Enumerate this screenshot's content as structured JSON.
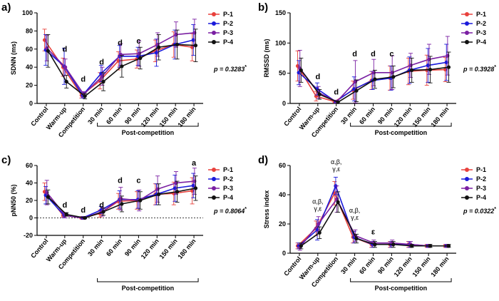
{
  "x_categories": [
    "Control",
    "Warm-up",
    "Competition",
    "30 min",
    "60 min",
    "90 min",
    "120 min",
    "150 min",
    "180 min"
  ],
  "post_label": "Post-competition",
  "series_names": [
    "P-1",
    "P-2",
    "P-3",
    "P-4"
  ],
  "series_colors": [
    "#e8413c",
    "#1a1adb",
    "#7a1fa2",
    "#111111"
  ],
  "chart_data": [
    {
      "id": "a",
      "letter": "a)",
      "type": "line",
      "ylabel": "SDNN (ms)",
      "ylim": [
        0,
        100
      ],
      "yticks": [
        0,
        20,
        40,
        60,
        80,
        100
      ],
      "p_label": "p = 0.3283",
      "p_star": "*",
      "annotations": [
        {
          "cat": 1,
          "text": "d",
          "y": 57
        },
        {
          "cat": 2,
          "text": "d",
          "y": 24
        },
        {
          "cat": 3,
          "text": "d",
          "y": 43
        },
        {
          "cat": 4,
          "text": "d",
          "y": 64
        },
        {
          "cat": 5,
          "text": "c",
          "y": 66
        }
      ],
      "series": [
        {
          "name": "P-1",
          "values": [
            70,
            40,
            9,
            25,
            47,
            49,
            58,
            65,
            62
          ],
          "errors": [
            12,
            10,
            3,
            9,
            10,
            10,
            12,
            14,
            15
          ]
        },
        {
          "name": "P-2",
          "values": [
            59,
            41,
            9,
            33,
            52,
            52,
            56,
            65,
            70
          ],
          "errors": [
            17,
            20,
            3,
            9,
            12,
            10,
            15,
            16,
            17
          ]
        },
        {
          "name": "P-3",
          "values": [
            61,
            40,
            10,
            30,
            54,
            55,
            65,
            76,
            78
          ],
          "errors": [
            14,
            9,
            3,
            10,
            12,
            14,
            13,
            14,
            15
          ]
        },
        {
          "name": "P-4",
          "values": [
            58,
            24,
            8,
            24,
            41,
            50,
            62,
            65,
            64
          ],
          "errors": [
            18,
            7,
            3,
            10,
            12,
            12,
            14,
            16,
            18
          ]
        }
      ]
    },
    {
      "id": "b",
      "letter": "b)",
      "type": "line",
      "ylabel": "RMSSD (ms)",
      "ylim": [
        0,
        150
      ],
      "yticks": [
        0,
        50,
        100,
        150
      ],
      "p_label": "p = 0.3928",
      "p_star": "*",
      "annotations": [
        {
          "cat": 1,
          "text": "d",
          "y": 40
        },
        {
          "cat": 2,
          "text": "d",
          "y": 15
        },
        {
          "cat": 3,
          "text": "d",
          "y": 78
        },
        {
          "cat": 4,
          "text": "d",
          "y": 78
        },
        {
          "cat": 5,
          "text": "c",
          "y": 78
        }
      ],
      "series": [
        {
          "name": "P-1",
          "values": [
            62,
            12,
            3,
            22,
            38,
            42,
            53,
            55,
            56
          ],
          "errors": [
            25,
            8,
            2,
            15,
            15,
            20,
            22,
            25,
            20
          ]
        },
        {
          "name": "P-2",
          "values": [
            51,
            24,
            3,
            24,
            38,
            42,
            55,
            63,
            68
          ],
          "errors": [
            20,
            10,
            2,
            20,
            15,
            20,
            22,
            28,
            30
          ]
        },
        {
          "name": "P-3",
          "values": [
            58,
            18,
            3,
            36,
            51,
            51,
            63,
            73,
            79
          ],
          "errors": [
            30,
            10,
            2,
            35,
            22,
            28,
            20,
            25,
            32
          ]
        },
        {
          "name": "P-4",
          "values": [
            55,
            15,
            2,
            21,
            40,
            44,
            55,
            56,
            60
          ],
          "errors": [
            20,
            8,
            2,
            18,
            15,
            18,
            20,
            22,
            25
          ]
        }
      ]
    },
    {
      "id": "c",
      "letter": "c)",
      "type": "line",
      "ylabel": "pNN50 (%)",
      "ylim": [
        -20,
        60
      ],
      "yticks": [
        -20,
        0,
        20,
        40,
        60
      ],
      "p_label": "p = 0.8064",
      "p_star": "*",
      "annotations": [
        {
          "cat": 1,
          "text": "d",
          "y": 12
        },
        {
          "cat": 2,
          "text": "d",
          "y": 6
        },
        {
          "cat": 3,
          "text": "d",
          "y": 12
        },
        {
          "cat": 4,
          "text": "d",
          "y": 40
        },
        {
          "cat": 5,
          "text": "c",
          "y": 40
        },
        {
          "cat": 8,
          "text": "a",
          "y": 60
        }
      ],
      "series": [
        {
          "name": "P-1",
          "values": [
            30,
            3,
            0,
            5,
            19,
            20,
            27,
            28,
            31
          ],
          "errors": [
            10,
            2,
            1,
            4,
            9,
            10,
            12,
            13,
            15
          ]
        },
        {
          "name": "P-2",
          "values": [
            26,
            3,
            0,
            9,
            21,
            21,
            27,
            34,
            37
          ],
          "errors": [
            10,
            3,
            1,
            4,
            10,
            10,
            12,
            15,
            14
          ]
        },
        {
          "name": "P-3",
          "values": [
            29,
            3,
            0,
            7,
            22,
            20,
            33,
            40,
            42
          ],
          "errors": [
            14,
            3,
            1,
            5,
            13,
            12,
            15,
            13,
            15
          ]
        },
        {
          "name": "P-4",
          "values": [
            24,
            4,
            0,
            7,
            16,
            20,
            27,
            30,
            34
          ],
          "errors": [
            8,
            2,
            1,
            4,
            9,
            10,
            12,
            12,
            14
          ]
        }
      ]
    },
    {
      "id": "d",
      "letter": "d)",
      "type": "line",
      "ylabel": "Stress index",
      "ylim": [
        0,
        60
      ],
      "yticks": [
        0,
        20,
        40,
        60
      ],
      "p_label": "p = 0.0322",
      "p_star": "*",
      "annotations": [
        {
          "cat": 1,
          "text": "α,β,",
          "text2": "γ,ε",
          "y": 29
        },
        {
          "cat": 2,
          "text": "α,β,",
          "text2": "γ,ε",
          "y": 56
        },
        {
          "cat": 3,
          "text": "α,β,",
          "text2": "γ,ε",
          "y": 23
        },
        {
          "cat": 4,
          "text": "ε",
          "y": 13
        }
      ],
      "series": [
        {
          "name": "P-1",
          "values": [
            5,
            17,
            41,
            11,
            6,
            6,
            6,
            5,
            5
          ],
          "errors": [
            2,
            5,
            8,
            4,
            2,
            2,
            2,
            1,
            1
          ]
        },
        {
          "name": "P-2",
          "values": [
            5,
            16,
            46,
            11,
            6,
            6,
            6,
            5,
            5
          ],
          "errors": [
            2,
            7,
            6,
            4,
            2,
            2,
            2,
            1,
            1
          ]
        },
        {
          "name": "P-3",
          "values": [
            4,
            20,
            37,
            12,
            7,
            7,
            6,
            5,
            5
          ],
          "errors": [
            2,
            5,
            9,
            4,
            2,
            2,
            2,
            1,
            1
          ]
        },
        {
          "name": "P-4",
          "values": [
            5,
            14,
            35,
            10,
            6,
            6,
            5,
            5,
            5
          ],
          "errors": [
            2,
            4,
            7,
            3,
            2,
            2,
            1,
            1,
            1
          ]
        }
      ]
    }
  ]
}
